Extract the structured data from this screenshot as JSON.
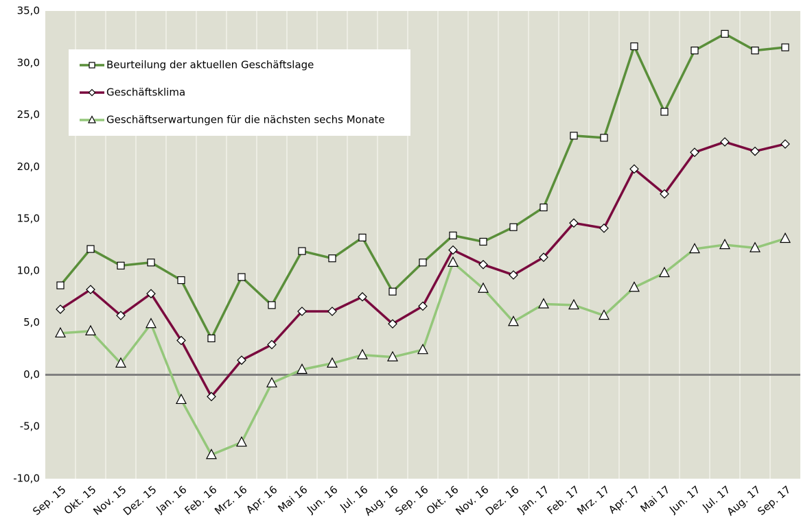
{
  "chart_data": {
    "type": "line",
    "categories": [
      "Sep. 15",
      "Okt. 15",
      "Nov. 15",
      "Dez. 15",
      "Jan. 16",
      "Feb. 16",
      "Mrz. 16",
      "Apr. 16",
      "Mai  16",
      "Jun. 16",
      "Jul. 16",
      "Aug. 16",
      "Sep. 16",
      "Okt. 16",
      "Nov. 16",
      "Dez. 16",
      "Jan. 17",
      "Feb. 17",
      "Mrz. 17",
      "Apr. 17",
      "Mai  17",
      "Jun. 17",
      "Jul. 17",
      "Aug. 17",
      "Sep. 17"
    ],
    "series": [
      {
        "name": "Beurteilung der aktuellen Geschäftslage",
        "color": "#5a8f3a",
        "marker": "square",
        "values": [
          8.6,
          12.1,
          10.5,
          10.8,
          9.1,
          3.5,
          9.4,
          6.7,
          11.9,
          11.2,
          13.2,
          8.0,
          10.8,
          13.4,
          12.8,
          14.2,
          16.1,
          23.0,
          22.8,
          31.6,
          25.3,
          31.2,
          32.8,
          31.2,
          31.5
        ]
      },
      {
        "name": "Geschäftsklima",
        "color": "#7a0a3e",
        "marker": "diamond",
        "values": [
          6.3,
          8.2,
          5.7,
          7.8,
          3.3,
          -2.1,
          1.4,
          2.9,
          6.1,
          6.1,
          7.5,
          4.9,
          6.6,
          12.0,
          10.6,
          9.6,
          11.3,
          14.6,
          14.1,
          19.8,
          17.4,
          21.4,
          22.4,
          21.5,
          22.2
        ]
      },
      {
        "name": "Geschäftserwartungen für die nächsten sechs Monate",
        "color": "#94c77a",
        "marker": "triangle",
        "values": [
          4.0,
          4.2,
          1.1,
          4.9,
          -2.4,
          -7.7,
          -6.5,
          -0.8,
          0.5,
          1.1,
          1.9,
          1.7,
          2.4,
          10.8,
          8.3,
          5.1,
          6.8,
          6.7,
          5.7,
          8.4,
          9.8,
          12.1,
          12.5,
          12.2,
          13.1
        ]
      }
    ],
    "ylim": [
      -10,
      35
    ],
    "yticks": [
      {
        "value": -10,
        "label": "-10,0"
      },
      {
        "value": -5,
        "label": "-5,0"
      },
      {
        "value": 0,
        "label": "0,0"
      },
      {
        "value": 5,
        "label": "5,0"
      },
      {
        "value": 10,
        "label": "10,0"
      },
      {
        "value": 15,
        "label": "15,0"
      },
      {
        "value": 20,
        "label": "20,0"
      },
      {
        "value": 25,
        "label": "25,0"
      },
      {
        "value": 30,
        "label": "30,0"
      },
      {
        "value": 35,
        "label": "35,0"
      }
    ],
    "legend": "upper left"
  }
}
